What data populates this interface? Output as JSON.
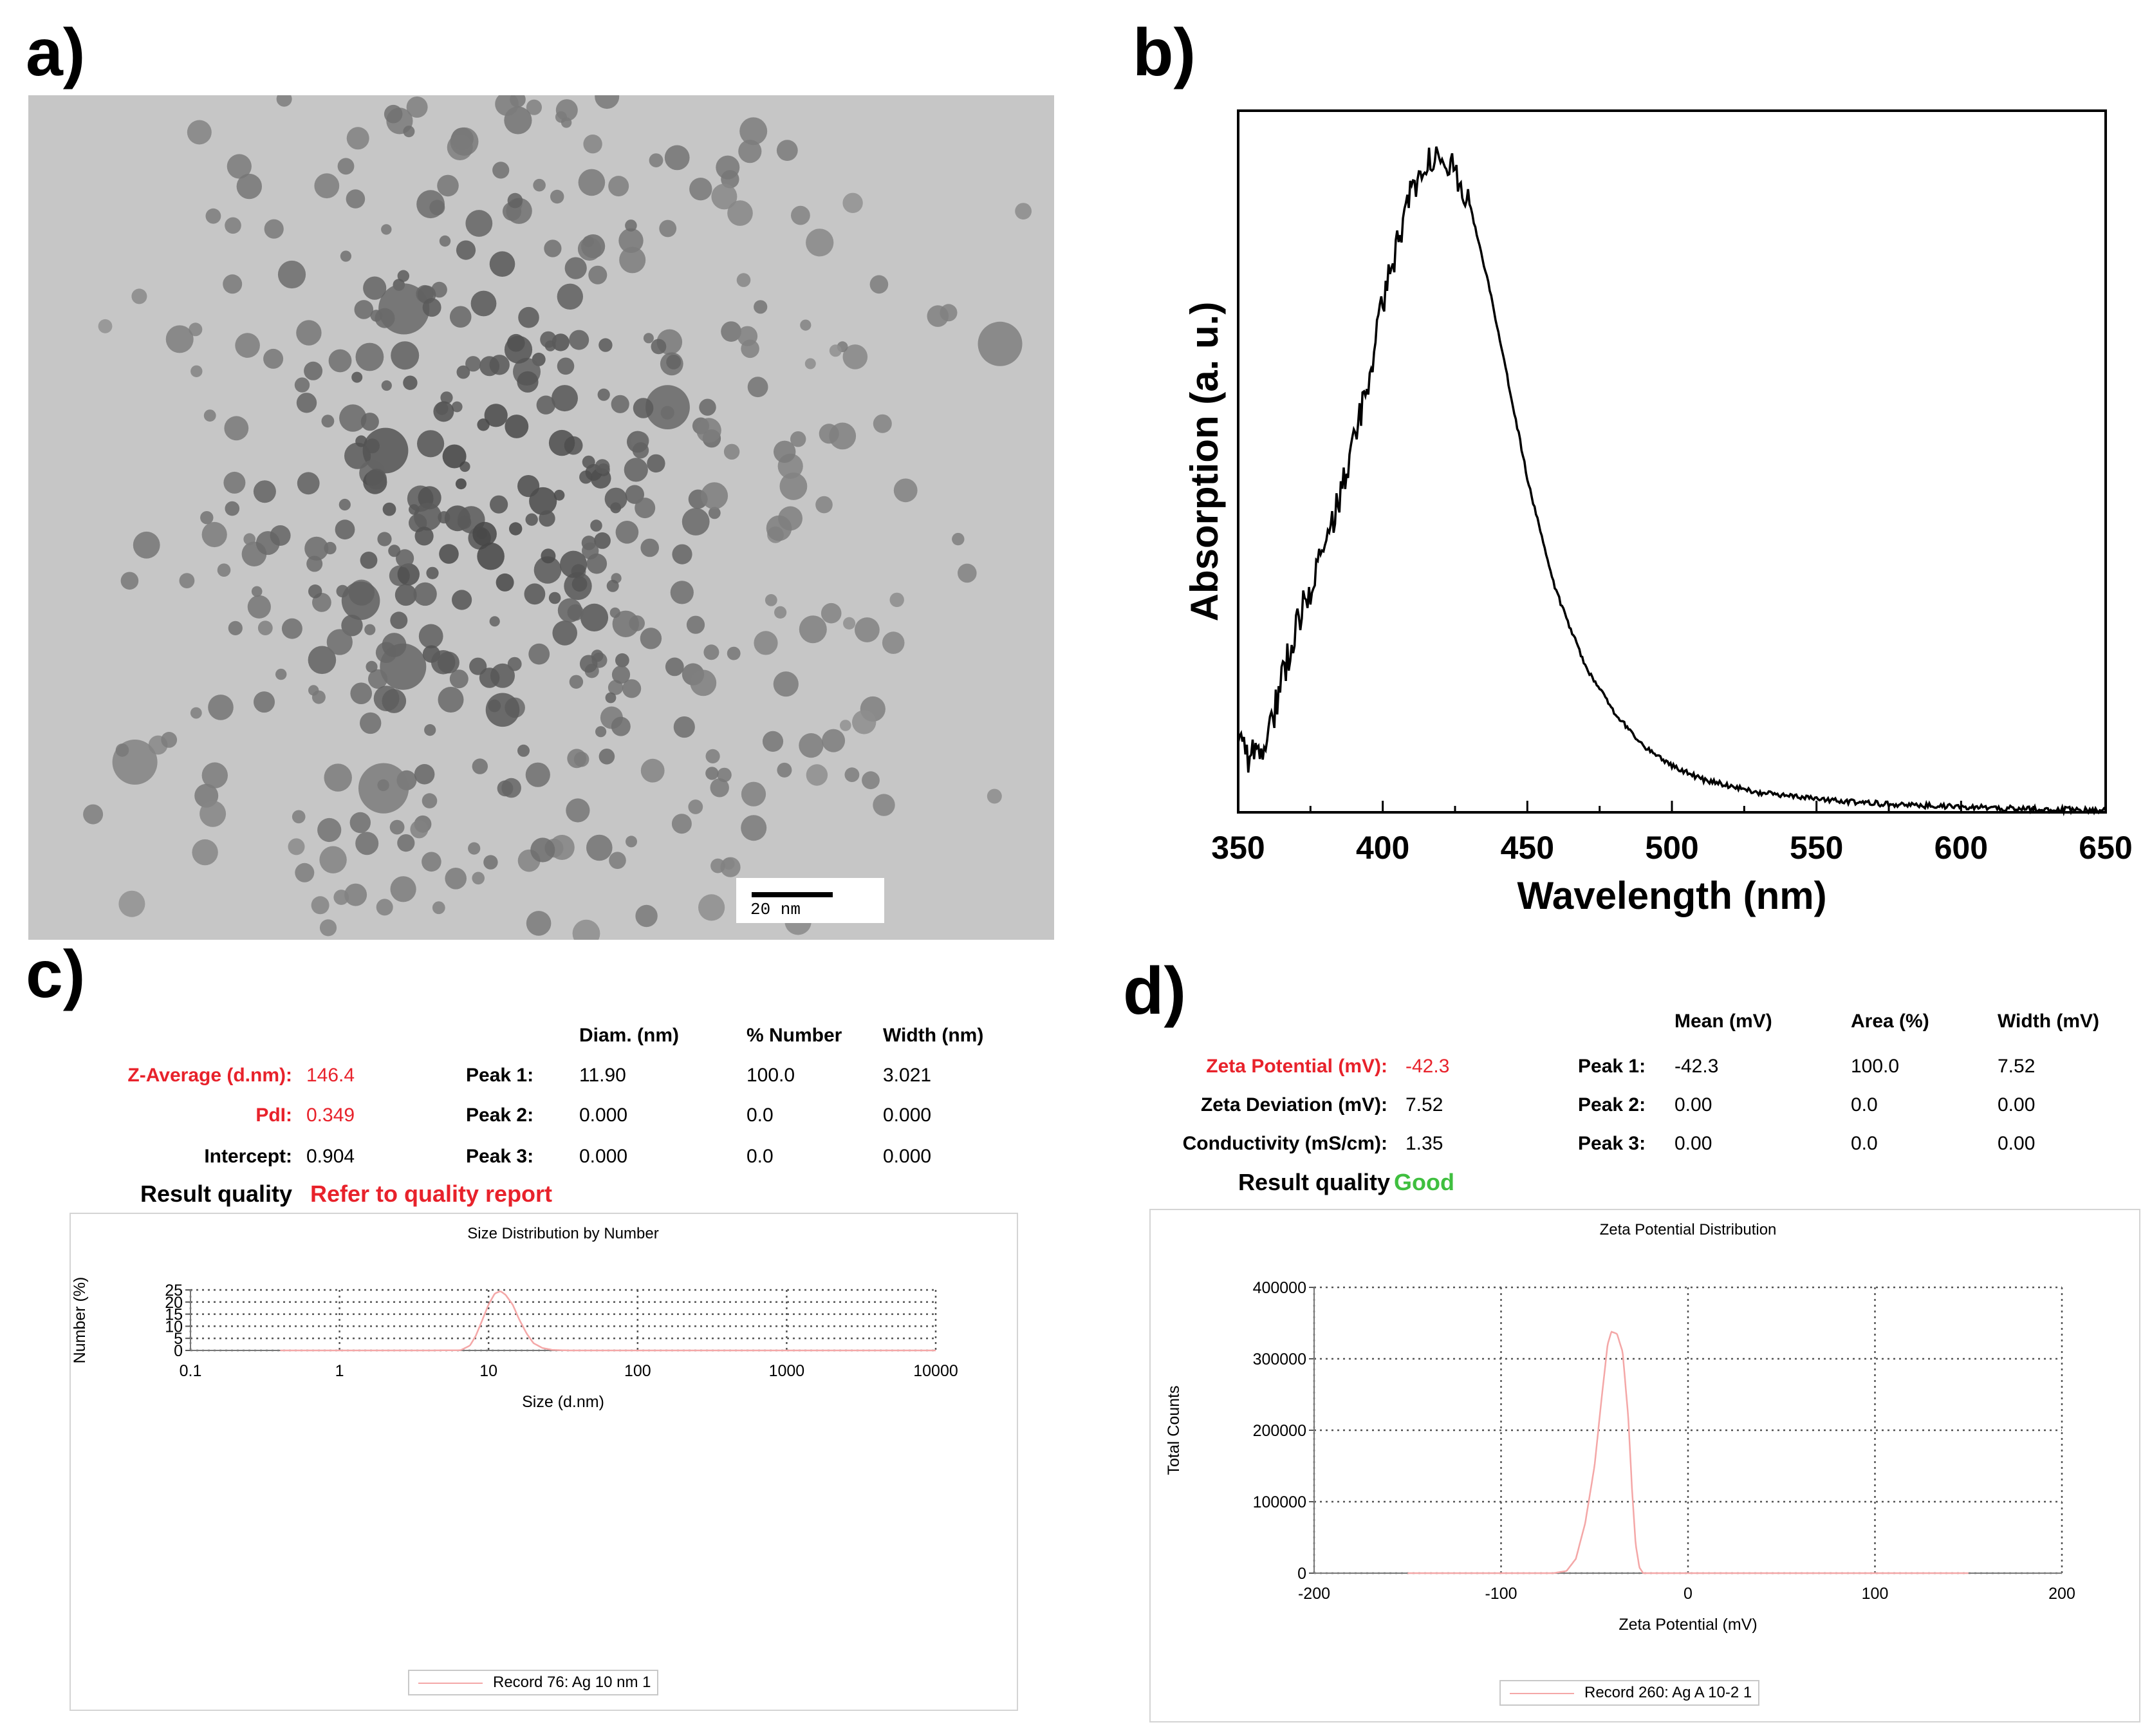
{
  "panels": {
    "a": {
      "label": "a)",
      "scale_bar": "20 nm"
    },
    "b": {
      "label": "b)"
    },
    "c": {
      "label": "c)"
    },
    "d": {
      "label": "d)"
    }
  },
  "dls": {
    "headers": {
      "diam": "Diam. (nm)",
      "number": "% Number",
      "width": "Width (nm)"
    },
    "rows": [
      {
        "label": "Z-Average (d.nm):",
        "value": "146.4",
        "peak": "Peak 1:",
        "diam": "11.90",
        "number": "100.0",
        "width": "3.021"
      },
      {
        "label": "PdI:",
        "value": "0.349",
        "peak": "Peak 2:",
        "diam": "0.000",
        "number": "0.0",
        "width": "0.000"
      },
      {
        "label": "Intercept:",
        "value": "0.904",
        "peak": "Peak 3:",
        "diam": "0.000",
        "number": "0.0",
        "width": "0.000"
      }
    ],
    "result_quality_label": "Result quality",
    "result_quality_value": "Refer to quality report"
  },
  "zeta": {
    "headers": {
      "mean": "Mean (mV)",
      "area": "Area (%)",
      "width": "Width (mV)"
    },
    "rows": [
      {
        "label": "Zeta Potential (mV):",
        "value": "-42.3",
        "peak": "Peak 1:",
        "mean": "-42.3",
        "area": "100.0",
        "width": "7.52"
      },
      {
        "label": "Zeta Deviation (mV):",
        "value": "7.52",
        "peak": "Peak 2:",
        "mean": "0.00",
        "area": "0.0",
        "width": "0.00"
      },
      {
        "label": "Conductivity (mS/cm):",
        "value": "1.35",
        "peak": "Peak 3:",
        "mean": "0.00",
        "area": "0.0",
        "width": "0.00"
      }
    ],
    "result_quality_label": "Result quality",
    "result_quality_value": "Good"
  },
  "colors": {
    "red": "#e8222b",
    "green": "#3fbf3f",
    "curve_pink": "#f4a7a7",
    "grid": "#555555"
  },
  "chart_data": [
    {
      "id": "b",
      "type": "line",
      "title": "",
      "xlabel": "Wavelength (nm)",
      "ylabel": "Absorption (a. u.)",
      "xlim": [
        350,
        650
      ],
      "ylim": [
        0,
        1.05
      ],
      "xticks": [
        350,
        400,
        450,
        500,
        550,
        600,
        650
      ],
      "grid": false,
      "series": [
        {
          "name": "Absorption",
          "x": [
            350,
            355,
            360,
            365,
            370,
            375,
            380,
            385,
            390,
            395,
            400,
            405,
            410,
            415,
            420,
            425,
            430,
            435,
            440,
            445,
            450,
            455,
            460,
            470,
            480,
            490,
            500,
            510,
            520,
            530,
            550,
            575,
            600,
            625,
            650
          ],
          "y": [
            0.1,
            0.08,
            0.11,
            0.2,
            0.28,
            0.34,
            0.39,
            0.47,
            0.55,
            0.65,
            0.76,
            0.85,
            0.93,
            0.97,
            0.99,
            0.96,
            0.91,
            0.82,
            0.72,
            0.61,
            0.5,
            0.41,
            0.33,
            0.22,
            0.15,
            0.1,
            0.07,
            0.05,
            0.04,
            0.03,
            0.02,
            0.012,
            0.008,
            0.005,
            0.003
          ]
        }
      ]
    },
    {
      "id": "c",
      "type": "line",
      "title": "Size Distribution by Number",
      "xlabel": "Size (d.nm)",
      "ylabel": "Number (%)",
      "xscale": "log",
      "xlim": [
        0.1,
        10000
      ],
      "ylim": [
        0,
        25
      ],
      "xticks": [
        0.1,
        1,
        10,
        100,
        1000,
        10000
      ],
      "xtick_labels": [
        "0.1",
        "1",
        "10",
        "100",
        "1000",
        "10000"
      ],
      "yticks": [
        0,
        5,
        10,
        15,
        20,
        25
      ],
      "grid": true,
      "legend": "bottom-center",
      "series": [
        {
          "name": "Record 76: Ag 10 nm 1",
          "x": [
            0.4,
            4,
            6.5,
            7.5,
            8.2,
            9,
            10,
            11,
            12,
            13,
            14.5,
            16,
            18,
            20,
            23,
            27,
            35,
            10000
          ],
          "y": [
            0,
            0,
            0.1,
            2,
            6,
            12,
            19,
            23.5,
            24.5,
            23,
            19,
            13,
            7,
            3,
            1,
            0.2,
            0,
            0
          ]
        }
      ]
    },
    {
      "id": "d",
      "type": "line",
      "title": "Zeta Potential Distribution",
      "xlabel": "Zeta Potential (mV)",
      "ylabel": "Total Counts",
      "xlim": [
        -200,
        200
      ],
      "ylim": [
        0,
        400000
      ],
      "xticks": [
        -200,
        -100,
        0,
        100,
        200
      ],
      "yticks": [
        0,
        100000,
        200000,
        300000,
        400000
      ],
      "grid": true,
      "legend": "bottom-center",
      "series": [
        {
          "name": "Record 260: Ag A 10-2 1",
          "x": [
            -150,
            -72,
            -65,
            -60,
            -55,
            -50,
            -46,
            -43,
            -41,
            -38,
            -35,
            -32,
            -30,
            -28,
            -26,
            -24,
            150
          ],
          "y": [
            0,
            0,
            3000,
            20000,
            70000,
            150000,
            250000,
            320000,
            338000,
            335000,
            310000,
            220000,
            120000,
            40000,
            8000,
            0,
            0
          ]
        }
      ]
    }
  ]
}
